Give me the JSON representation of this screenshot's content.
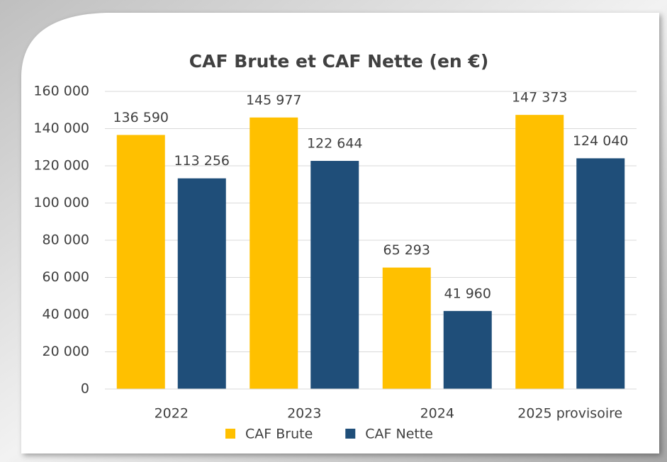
{
  "chart_data": {
    "type": "bar",
    "title": "CAF Brute et CAF Nette (en €)",
    "categories": [
      "2022",
      "2023",
      "2024",
      "2025 provisoire"
    ],
    "series": [
      {
        "name": "CAF Brute",
        "color": "#ffc000",
        "values": [
          136590,
          145977,
          65293,
          147373
        ],
        "value_labels": [
          "136 590",
          "145 977",
          "65 293",
          "147 373"
        ]
      },
      {
        "name": "CAF Nette",
        "color": "#1f4e79",
        "values": [
          113256,
          122644,
          41960,
          124040
        ],
        "value_labels": [
          "113 256",
          "122 644",
          "41 960",
          "124 040"
        ]
      }
    ],
    "ylim": [
      0,
      160000
    ],
    "yticks": [
      {
        "value": 0,
        "label": "0"
      },
      {
        "value": 20000,
        "label": "20 000"
      },
      {
        "value": 40000,
        "label": "40 000"
      },
      {
        "value": 60000,
        "label": "60 000"
      },
      {
        "value": 80000,
        "label": "80 000"
      },
      {
        "value": 100000,
        "label": "100 000"
      },
      {
        "value": 120000,
        "label": "120 000"
      },
      {
        "value": 140000,
        "label": "140 000"
      },
      {
        "value": 160000,
        "label": "160 000"
      }
    ],
    "grid": true,
    "legend": "bottom"
  }
}
